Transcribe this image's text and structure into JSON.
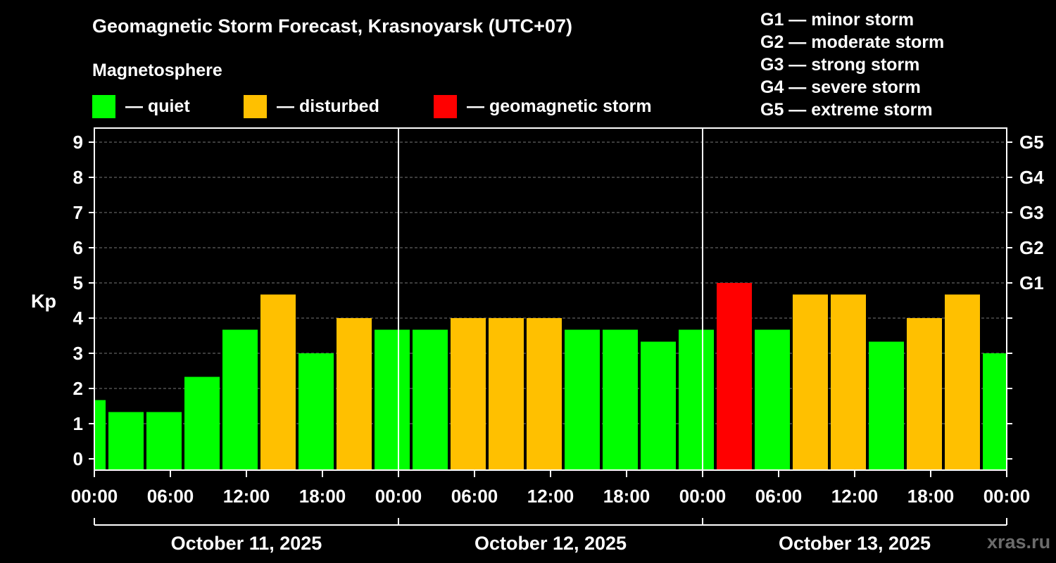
{
  "title": "Geomagnetic Storm Forecast, Krasnoyarsk (UTC+07)",
  "subtitle": "Magnetosphere",
  "legend": [
    {
      "label": "— quiet",
      "color": "#00ff00"
    },
    {
      "label": "— disturbed",
      "color": "#ffc000"
    },
    {
      "label": "— geomagnetic storm",
      "color": "#ff0000"
    }
  ],
  "storm_scale": [
    "G1 — minor storm",
    "G2 — moderate storm",
    "G3 — strong storm",
    "G4 — severe storm",
    "G5 — extreme storm"
  ],
  "watermark": "xras.ru",
  "chart_data": {
    "type": "bar",
    "title": "Geomagnetic Storm Forecast, Krasnoyarsk (UTC+07)",
    "ylabel": "Kp",
    "ylim": [
      0,
      9
    ],
    "yticks": [
      0,
      1,
      2,
      3,
      4,
      5,
      6,
      7,
      8,
      9
    ],
    "right_axis": [
      {
        "kp": 5,
        "label": "G1"
      },
      {
        "kp": 6,
        "label": "G2"
      },
      {
        "kp": 7,
        "label": "G3"
      },
      {
        "kp": 8,
        "label": "G4"
      },
      {
        "kp": 9,
        "label": "G5"
      }
    ],
    "x_range_hours": [
      0,
      72
    ],
    "xticks": [
      {
        "hour": 0,
        "label": "00:00"
      },
      {
        "hour": 6,
        "label": "06:00"
      },
      {
        "hour": 12,
        "label": "12:00"
      },
      {
        "hour": 18,
        "label": "18:00"
      },
      {
        "hour": 24,
        "label": "00:00"
      },
      {
        "hour": 30,
        "label": "06:00"
      },
      {
        "hour": 36,
        "label": "12:00"
      },
      {
        "hour": 42,
        "label": "18:00"
      },
      {
        "hour": 48,
        "label": "00:00"
      },
      {
        "hour": 54,
        "label": "06:00"
      },
      {
        "hour": 60,
        "label": "12:00"
      },
      {
        "hour": 66,
        "label": "18:00"
      },
      {
        "hour": 72,
        "label": "00:00"
      }
    ],
    "days": [
      {
        "label": "October 11, 2025",
        "start": 0,
        "end": 24
      },
      {
        "label": "October 12, 2025",
        "start": 24,
        "end": 48
      },
      {
        "label": "October 13, 2025",
        "start": 48,
        "end": 72
      }
    ],
    "bars": [
      {
        "start": 0,
        "end": 1,
        "kp": 1.67,
        "status": "quiet"
      },
      {
        "start": 1,
        "end": 4,
        "kp": 1.33,
        "status": "quiet"
      },
      {
        "start": 4,
        "end": 7,
        "kp": 1.33,
        "status": "quiet"
      },
      {
        "start": 7,
        "end": 10,
        "kp": 2.33,
        "status": "quiet"
      },
      {
        "start": 10,
        "end": 13,
        "kp": 3.67,
        "status": "quiet"
      },
      {
        "start": 13,
        "end": 16,
        "kp": 4.67,
        "status": "disturbed"
      },
      {
        "start": 16,
        "end": 19,
        "kp": 3.0,
        "status": "quiet"
      },
      {
        "start": 19,
        "end": 22,
        "kp": 4.0,
        "status": "disturbed"
      },
      {
        "start": 22,
        "end": 25,
        "kp": 3.67,
        "status": "quiet"
      },
      {
        "start": 25,
        "end": 28,
        "kp": 3.67,
        "status": "quiet"
      },
      {
        "start": 28,
        "end": 31,
        "kp": 4.0,
        "status": "disturbed"
      },
      {
        "start": 31,
        "end": 34,
        "kp": 4.0,
        "status": "disturbed"
      },
      {
        "start": 34,
        "end": 37,
        "kp": 4.0,
        "status": "disturbed"
      },
      {
        "start": 37,
        "end": 40,
        "kp": 3.67,
        "status": "quiet"
      },
      {
        "start": 40,
        "end": 43,
        "kp": 3.67,
        "status": "quiet"
      },
      {
        "start": 43,
        "end": 46,
        "kp": 3.33,
        "status": "quiet"
      },
      {
        "start": 46,
        "end": 49,
        "kp": 3.67,
        "status": "quiet"
      },
      {
        "start": 49,
        "end": 52,
        "kp": 5.0,
        "status": "storm"
      },
      {
        "start": 52,
        "end": 55,
        "kp": 3.67,
        "status": "quiet"
      },
      {
        "start": 55,
        "end": 58,
        "kp": 4.67,
        "status": "disturbed"
      },
      {
        "start": 58,
        "end": 61,
        "kp": 4.67,
        "status": "disturbed"
      },
      {
        "start": 61,
        "end": 64,
        "kp": 3.33,
        "status": "quiet"
      },
      {
        "start": 64,
        "end": 67,
        "kp": 4.0,
        "status": "disturbed"
      },
      {
        "start": 67,
        "end": 70,
        "kp": 4.67,
        "status": "disturbed"
      },
      {
        "start": 70,
        "end": 72,
        "kp": 3.0,
        "status": "quiet"
      }
    ],
    "status_colors": {
      "quiet": "#00ff00",
      "disturbed": "#ffc000",
      "storm": "#ff0000"
    }
  }
}
